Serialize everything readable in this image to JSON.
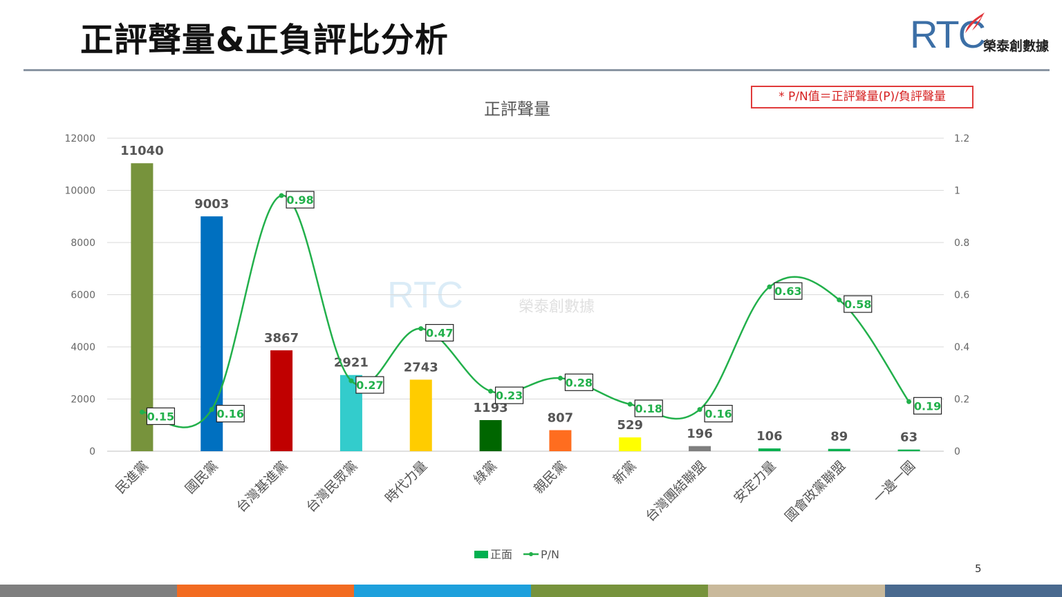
{
  "header": {
    "title": "正評聲量&正負評比分析",
    "logo_mark": "RTC",
    "logo_text": "榮泰創數據"
  },
  "note": "* P/N值＝正評聲量(P)/負評聲量",
  "watermark": {
    "mark": "RTC",
    "text": "榮泰創數據"
  },
  "page_number": "5",
  "footer_colors": [
    "#7f7f7f",
    "#f26b21",
    "#1ea0dc",
    "#77933c",
    "#c9b99b",
    "#4a6a8f"
  ],
  "chart_data": {
    "type": "bar",
    "title": "正評聲量",
    "categories": [
      "民進黨",
      "國民黨",
      "台灣基進黨",
      "台灣民眾黨",
      "時代力量",
      "綠黨",
      "親民黨",
      "新黨",
      "台灣團結聯盟",
      "安定力量",
      "國會政黨聯盟",
      "一邊一國"
    ],
    "series": [
      {
        "name": "正面",
        "type": "bar",
        "axis": "left",
        "values": [
          11040,
          9003,
          3867,
          2921,
          2743,
          1193,
          807,
          529,
          196,
          106,
          89,
          63
        ],
        "colors": [
          "#77933c",
          "#0070c0",
          "#c00000",
          "#33cccc",
          "#ffcc00",
          "#006600",
          "#ff6d1f",
          "#ffff00",
          "#7f7f7f",
          "#00b050",
          "#00b050",
          "#00b050"
        ]
      },
      {
        "name": "P/N",
        "type": "line",
        "axis": "right",
        "color": "#22b04b",
        "values": [
          0.15,
          0.16,
          0.98,
          0.27,
          0.47,
          0.23,
          0.28,
          0.18,
          0.16,
          0.63,
          0.58,
          0.19
        ]
      }
    ],
    "left_axis": {
      "range": [
        0,
        12000
      ],
      "ticks": [
        "0",
        "2000",
        "4000",
        "6000",
        "8000",
        "10000",
        "12000"
      ]
    },
    "right_axis": {
      "range": [
        0,
        1.2
      ],
      "ticks": [
        "0",
        "0.2",
        "0.4",
        "0.6",
        "0.8",
        "1",
        "1.2"
      ]
    },
    "grid": true,
    "legend_position": "bottom"
  }
}
